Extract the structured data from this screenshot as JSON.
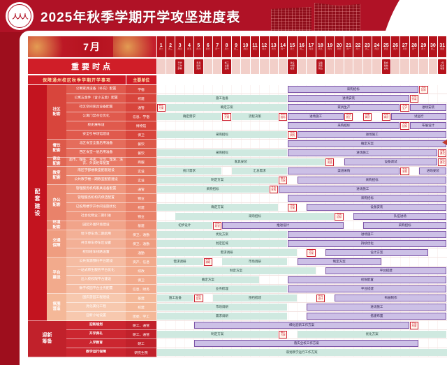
{
  "banner": {
    "title": "2025年秋季学期开学攻坚进度表",
    "logo": "人人人"
  },
  "calendar": {
    "month_label": "7月",
    "weekdays": [
      "周二",
      "周三",
      "周四",
      "周五",
      "周六",
      "周日",
      "周一",
      "周二",
      "周三",
      "周四",
      "周五",
      "周六",
      "周日",
      "周一",
      "周二",
      "周三",
      "周四",
      "周五",
      "周六",
      "周日",
      "周一",
      "周二",
      "周三",
      "周四",
      "周五",
      "周六",
      "周日",
      "周一",
      "周二",
      "周三",
      "周四"
    ]
  },
  "timepoints": {
    "label": "重要时点",
    "items": [
      {
        "day": 3,
        "text": "开学\n工作\n部署"
      },
      {
        "day": 5,
        "text": "家具\n招标\n完成"
      },
      {
        "day": 8,
        "text": "施工\n全面\n进场"
      },
      {
        "day": 15,
        "text": "建设\n中期\n检查"
      },
      {
        "day": 18,
        "text": "设备\n安装\n到位"
      },
      {
        "day": 25,
        "text": "联合\n验收\n启动"
      },
      {
        "day": 31,
        "text": "7月\n任务\n收官"
      }
    ]
  },
  "table_header": {
    "left": "保障通州校区秋季学期开学事项",
    "right": "主要单位"
  },
  "outer_group": "配套建设",
  "phase_colors": {
    "early": "#cfe9e0",
    "late": "#ccc0e6",
    "milestone": "#cf2233"
  },
  "groups": [
    {
      "name": "社区配套",
      "color": "#d8453c",
      "row_color": "#e05a4d",
      "rows": [
        {
          "task": "公寓家具设备（补充）配置",
          "unit": "学宿",
          "bars": [
            [
              15,
              28,
              "p",
              "采购招标"
            ]
          ],
          "marks": [
            [
              29,
              "完成\n招标"
            ]
          ]
        },
        {
          "task": "公寓五金件（含小五金）配置",
          "unit": "校建",
          "bars": [
            [
              1,
              14,
              "c",
              "施工准备"
            ],
            [
              15,
              27,
              "p",
              "进场安装"
            ]
          ],
          "marks": [
            [
              28,
              "完成\n安装"
            ]
          ]
        },
        {
          "task": "社区空间家具设备配置",
          "unit": "通管",
          "bars": [
            [
              2,
              14,
              "c",
              "确定方案"
            ],
            [
              15,
              26,
              "p",
              "家具生产"
            ],
            [
              28,
              31,
              "p",
              "进场安装"
            ]
          ],
          "marks": [
            [
              1,
              "确定\n方案"
            ],
            [
              27,
              "完成\n生产"
            ]
          ]
        },
        {
          "task": "公寓门禁点位优化",
          "unit": "信息、学宿",
          "bars": [
            [
              1,
              7,
              "c",
              "确定需求"
            ],
            [
              9,
              13,
              "c",
              "流程决策"
            ],
            [
              15,
              20,
              "p",
              "进场施工"
            ],
            [
              26,
              31,
              "p",
              "试运行"
            ]
          ],
          "marks": [
            [
              8,
              "确定\n方案"
            ],
            [
              14,
              "采购\n招标"
            ],
            [
              21,
              "完成\n施工"
            ],
            [
              23,
              "设备\n调试"
            ],
            [
              25,
              "完成\n调试"
            ]
          ]
        },
        {
          "task": "校史展布设",
          "unit": "博物馆",
          "bars": [
            [
              15,
              26,
              "p",
              "采购招标"
            ],
            [
              28,
              31,
              "p",
              "布展设计"
            ]
          ],
          "marks": [
            [
              27,
              "完成\n招标"
            ]
          ]
        },
        {
          "task": "安全引导场馆建设",
          "unit": "保卫",
          "bars": [
            [
              1,
              14,
              "c",
              "采购招标"
            ],
            [
              16,
              31,
              "p",
              "进场施工"
            ]
          ],
          "marks": [
            [
              15,
              "完成\n采购"
            ]
          ]
        }
      ]
    },
    {
      "name": "餐饮配套",
      "color": "#dd5a4a",
      "row_color": "#e56d5c",
      "rows": [
        {
          "task": "北区食堂全面启用准备",
          "unit": "餐饮",
          "bars": [
            [
              15,
              31,
              "p",
              "确定方案"
            ]
          ],
          "marks": []
        },
        {
          "task": "西区食堂一层启用准备",
          "unit": "餐饮",
          "bars": [
            [
              1,
              14,
              "c",
              "采购招标"
            ],
            [
              15,
              30,
              "p",
              "进场施工"
            ]
          ],
          "marks": [
            [
              31,
              "设备\n调试"
            ]
          ]
        }
      ]
    },
    {
      "name": "商业配套",
      "color": "#e16653",
      "row_color": "#e97a66",
      "rows": [
        {
          "task": "超市、咖啡、书店、文印、理发、洗衣、外卖柜等配置",
          "unit": "商服",
          "bars": [
            [
              1,
              18,
              "c",
              "家具安装"
            ],
            [
              21,
              30,
              "p",
              "设备调试"
            ]
          ],
          "marks": [
            [
              19,
              "完成\n安装"
            ],
            [
              31,
              "完成\n调试"
            ]
          ]
        }
      ]
    },
    {
      "name": "教室配套",
      "color": "#e5745e",
      "row_color": "#ec8a72",
      "rows": [
        {
          "task": "南区学部楼教室配套建设",
          "unit": "实设",
          "bars": [
            [
              1,
              7,
              "c",
              "统计需求"
            ],
            [
              9,
              14,
              "c",
              "汇总需求"
            ],
            [
              15,
              26,
              "p",
              "渠道采购"
            ],
            [
              29,
              31,
              "p",
              "进场安装"
            ]
          ],
          "marks": [
            [
              27,
              "完成\n采购"
            ]
          ]
        },
        {
          "task": "公共教学楼一期教室配套建设",
          "unit": "实设",
          "bars": [
            [
              1,
              13,
              "c",
              "制定方案"
            ],
            [
              16,
              31,
              "p",
              "采购招标"
            ]
          ],
          "marks": [
            [
              14,
              "确认\n方案"
            ]
          ]
        }
      ]
    },
    {
      "name": "办公配套",
      "color": "#e9826a",
      "row_color": "#ef977e",
      "rows": [
        {
          "task": "管理服务机构家具设备配置",
          "unit": "通管",
          "bars": [
            [
              1,
              12,
              "c",
              "采购招标"
            ],
            [
              14,
              31,
              "p",
              "进场施工"
            ]
          ],
          "marks": [
            [
              13,
              "完成\n采购"
            ]
          ]
        },
        {
          "task": "管理服务机构内保洁配置",
          "unit": "物业",
          "bars": [
            [
              15,
              31,
              "p",
              "采购招标"
            ]
          ],
          "marks": []
        },
        {
          "task": "已投用楼宇开水间设施优化",
          "unit": "校建",
          "bars": [
            [
              1,
              13,
              "c",
              "确定方案"
            ],
            [
              17,
              31,
              "p",
              "设备安装"
            ]
          ],
          "marks": [
            [
              15,
              "完成\n方案"
            ]
          ]
        },
        {
          "task": "社会化物业二期引进",
          "unit": "物业",
          "bars": [
            [
              3,
              19,
              "c",
              "采购招标"
            ],
            [
              22,
              31,
              "p",
              "队伍进场"
            ]
          ],
          "marks": [
            [
              20,
              "完成\n招标"
            ]
          ]
        }
      ]
    },
    {
      "name": "环境配套",
      "color": "#ec8f75",
      "row_color": "#f1a48a",
      "rows": [
        {
          "task": "园区外围环境建设",
          "unit": "基建",
          "bars": [
            [
              1,
              6,
              "c",
              "初步设计"
            ],
            [
              8,
              20,
              "p",
              "推进设计"
            ],
            [
              23,
              31,
              "p",
              "采购招标"
            ]
          ],
          "marks": [
            [
              7,
              "完成\n初设"
            ]
          ]
        }
      ]
    },
    {
      "name": "交通保障",
      "color": "#ef9d80",
      "row_color": "#f3b096",
      "rows": [
        {
          "task": "地下停车场二期启用",
          "unit": "保卫、通勤",
          "bars": [
            [
              1,
              14,
              "c",
              "优化方案"
            ],
            [
              15,
              31,
              "p",
              "进场施工"
            ]
          ],
          "marks": []
        },
        {
          "task": "共享单车停车区设置",
          "unit": "保卫、通勤",
          "bars": [
            [
              1,
              14,
              "c",
              "划定区域"
            ],
            [
              15,
              31,
              "p",
              "持续优化"
            ]
          ],
          "marks": []
        },
        {
          "task": "校际班车线路设置",
          "unit": "通勤",
          "bars": [
            [
              1,
              15,
              "c",
              "需求调研"
            ],
            [
              19,
              29,
              "p",
              "设计方案"
            ]
          ],
          "marks": [
            [
              17,
              "完成\n方案"
            ]
          ]
        }
      ]
    },
    {
      "name": "平台建设",
      "color": "#f2aa8c",
      "row_color": "#f5bca2",
      "rows": [
        {
          "task": "公共资源预约平台建设",
          "unit": "资产、信息",
          "bars": [
            [
              1,
              5,
              "c",
              "需求调研"
            ],
            [
              8,
              14,
              "c",
              "市场调研"
            ],
            [
              16,
              24,
              "p",
              "制定方案"
            ]
          ],
          "marks": [
            [
              6,
              "完成\n调研"
            ]
          ]
        },
        {
          "task": "一站式师生服务平台优化",
          "unit": "综改",
          "bars": [
            [
              1,
              17,
              "c",
              "制定方案"
            ],
            [
              19,
              31,
              "p",
              "平台搭建"
            ]
          ],
          "marks": []
        },
        {
          "task": "出入校权限平台建设",
          "unit": "保卫",
          "bars": [
            [
              1,
              11,
              "c",
              "确定方案"
            ],
            [
              15,
              31,
              "p",
              "权限配置"
            ]
          ],
          "marks": []
        },
        {
          "task": "数字校园平台业务配置",
          "unit": "信息、财务",
          "bars": [
            [
              1,
              14,
              "c",
              "业务梳理"
            ],
            [
              15,
              31,
              "p",
              "平台搭建"
            ]
          ],
          "marks": []
        }
      ]
    },
    {
      "name": "氛围营造",
      "color": "#f4b898",
      "row_color": "#f7c8ae",
      "rows": [
        {
          "task": "国庆游园工程建设",
          "unit": "基建",
          "bars": [
            [
              1,
              4,
              "c",
              "施工准备"
            ],
            [
              7,
              15,
              "c",
              "围挡搭建"
            ],
            [
              20,
              31,
              "p",
              "布展制作"
            ]
          ],
          "marks": [
            [
              5,
              "完成\n招标"
            ],
            [
              18,
              "完成\n设计"
            ]
          ]
        },
        {
          "task": "亮化美化工程",
          "unit": "校建",
          "bars": [
            [
              1,
              14,
              "c",
              "市场调研"
            ],
            [
              17,
              31,
              "p",
              "进场施工"
            ]
          ],
          "marks": []
        },
        {
          "task": "迎新小站设置",
          "unit": "团委、学工",
          "bars": [
            [
              1,
              14,
              "c",
              "需求调研"
            ],
            [
              17,
              31,
              "p",
              "搭建布置"
            ]
          ],
          "marks": []
        }
      ]
    },
    {
      "name": "迎新筹备",
      "footer": true,
      "color": "#c1212b",
      "row_color": "#cb2630",
      "rows": [
        {
          "task": "迎新规划",
          "unit": "研工、通管",
          "bars": [
            [
              5,
              27,
              "p",
              "细化迎新工作方案"
            ]
          ],
          "marks": [
            [
              28,
              "完成\n布置"
            ]
          ]
        },
        {
          "task": "开学典礼",
          "unit": "研工、通管",
          "bars": [
            [
              1,
              13,
              "c",
              "制定方案"
            ],
            [
              16,
              31,
              "c",
              "优化方案"
            ]
          ],
          "marks": [
            [
              14,
              "确定\n方案"
            ]
          ]
        },
        {
          "task": "入学教育",
          "unit": "研工",
          "bars": [
            [
              5,
              28,
              "p",
              "落实全校工作方案"
            ]
          ],
          "marks": []
        },
        {
          "task": "教学运行保障",
          "unit": "研究生院",
          "bars": [
            [
              1,
              31,
              "c",
              "谋划教学运行工作方案"
            ]
          ],
          "marks": []
        }
      ]
    }
  ]
}
